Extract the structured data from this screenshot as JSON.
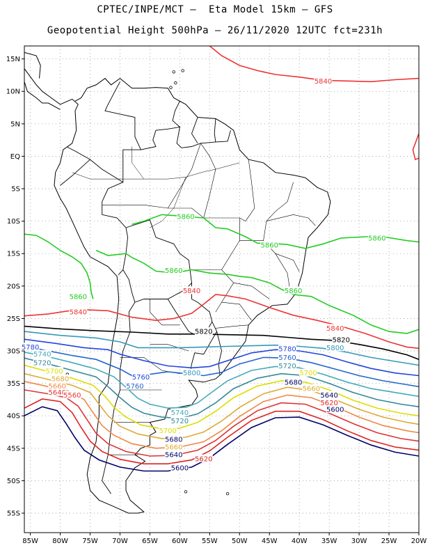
{
  "title_line1": "CPTEC/INPE/MCT –  Eta Model 15km – GFS",
  "title_line2": "Geopotential Height 500hPa – 26/11/2020 12UTC fct=231h",
  "lat_labels": [
    "15N",
    "10N",
    "5N",
    "EQ",
    "5S",
    "10S",
    "15S",
    "20S",
    "25S",
    "30S",
    "35S",
    "40S",
    "45S",
    "50S",
    "55S"
  ],
  "lon_labels": [
    "85W",
    "80W",
    "75W",
    "70W",
    "65W",
    "60W",
    "55W",
    "50W",
    "45W",
    "40W",
    "35W",
    "30W",
    "25W",
    "20W"
  ],
  "map_extent": {
    "lon_min": -86,
    "lon_max": -20,
    "lat_min": -58,
    "lat_max": 17
  },
  "contour_colors": {
    "5840": "#ee3333",
    "5820": "#000000",
    "5860": "#22cc22",
    "5800": "#3399bb",
    "5780": "#2244dd",
    "5760": "#2266cc",
    "5740": "#44aabb",
    "5720": "#338899",
    "5700": "#dddd00",
    "5680": "#ddaa33",
    "5660": "#ee8844",
    "5640": "#dd3333",
    "5620": "#dd2222",
    "5600": "#000066"
  },
  "contour_labels": [
    {
      "text": "5840",
      "lon": -36,
      "lat": 11.6,
      "color": "#ee3333"
    },
    {
      "text": "5860",
      "lon": -59,
      "lat": -9.3,
      "color": "#22cc22"
    },
    {
      "text": "5860",
      "lon": -45,
      "lat": -13.7,
      "color": "#22cc22"
    },
    {
      "text": "5860",
      "lon": -27,
      "lat": -12.6,
      "color": "#22cc22"
    },
    {
      "text": "5860",
      "lon": -61,
      "lat": -17.6,
      "color": "#22cc22"
    },
    {
      "text": "5860",
      "lon": -77,
      "lat": -21.6,
      "color": "#22cc22"
    },
    {
      "text": "5860",
      "lon": -41,
      "lat": -20.7,
      "color": "#22cc22"
    },
    {
      "text": "5840",
      "lon": -58,
      "lat": -20.7,
      "color": "#ee3333"
    },
    {
      "text": "5840",
      "lon": -77,
      "lat": -24,
      "color": "#ee3333"
    },
    {
      "text": "5840",
      "lon": -34,
      "lat": -26.5,
      "color": "#ee3333"
    },
    {
      "text": "5820",
      "lon": -56,
      "lat": -27,
      "color": "#000000"
    },
    {
      "text": "5820",
      "lon": -33,
      "lat": -28.3,
      "color": "#000000"
    },
    {
      "text": "5780",
      "lon": -85,
      "lat": -29.4,
      "color": "#2244dd"
    },
    {
      "text": "5780",
      "lon": -42,
      "lat": -29.7,
      "color": "#2244dd"
    },
    {
      "text": "5800",
      "lon": -34,
      "lat": -29.5,
      "color": "#3399bb"
    },
    {
      "text": "5740",
      "lon": -83,
      "lat": -30.5,
      "color": "#44aabb"
    },
    {
      "text": "5760",
      "lon": -42,
      "lat": -31,
      "color": "#2266cc"
    },
    {
      "text": "5720",
      "lon": -83,
      "lat": -31.8,
      "color": "#338899"
    },
    {
      "text": "5720",
      "lon": -42,
      "lat": -32.3,
      "color": "#338899"
    },
    {
      "text": "5700",
      "lon": -81,
      "lat": -33.1,
      "color": "#dddd00"
    },
    {
      "text": "5700",
      "lon": -38.5,
      "lat": -33.4,
      "color": "#dddd00"
    },
    {
      "text": "5760",
      "lon": -66.5,
      "lat": -34,
      "color": "#2244dd"
    },
    {
      "text": "5800",
      "lon": -58,
      "lat": -33.4,
      "color": "#3399bb"
    },
    {
      "text": "5680",
      "lon": -80,
      "lat": -34.3,
      "color": "#ddaa33"
    },
    {
      "text": "5680",
      "lon": -41,
      "lat": -34.8,
      "color": "#000066"
    },
    {
      "text": "5660",
      "lon": -80.5,
      "lat": -35.4,
      "color": "#ee8844"
    },
    {
      "text": "5660",
      "lon": -38,
      "lat": -35.8,
      "color": "#ddaa33"
    },
    {
      "text": "5640",
      "lon": -80.5,
      "lat": -36.4,
      "color": "#dd3333"
    },
    {
      "text": "5640",
      "lon": -35,
      "lat": -36.8,
      "color": "#000066"
    },
    {
      "text": "5760",
      "lon": -67.5,
      "lat": -35.4,
      "color": "#2266cc"
    },
    {
      "text": "5620",
      "lon": -35,
      "lat": -38,
      "color": "#dd2222"
    },
    {
      "text": "5600",
      "lon": -34,
      "lat": -39,
      "color": "#000066"
    },
    {
      "text": "5740",
      "lon": -60,
      "lat": -39.5,
      "color": "#44aabb"
    },
    {
      "text": "5720",
      "lon": -60,
      "lat": -40.8,
      "color": "#338899"
    },
    {
      "text": "5700",
      "lon": -62,
      "lat": -42.3,
      "color": "#dddd00"
    },
    {
      "text": "5680",
      "lon": -61,
      "lat": -43.6,
      "color": "#000066"
    },
    {
      "text": "5660",
      "lon": -61,
      "lat": -44.8,
      "color": "#ddaa33"
    },
    {
      "text": "5640",
      "lon": -61,
      "lat": -46,
      "color": "#000066"
    },
    {
      "text": "5620",
      "lon": -56,
      "lat": -46.6,
      "color": "#dd2222"
    },
    {
      "text": "5600",
      "lon": -60,
      "lat": -48,
      "color": "#000066"
    },
    {
      "text": "5560",
      "lon": -78,
      "lat": -36.8,
      "color": "#ee3333"
    }
  ]
}
